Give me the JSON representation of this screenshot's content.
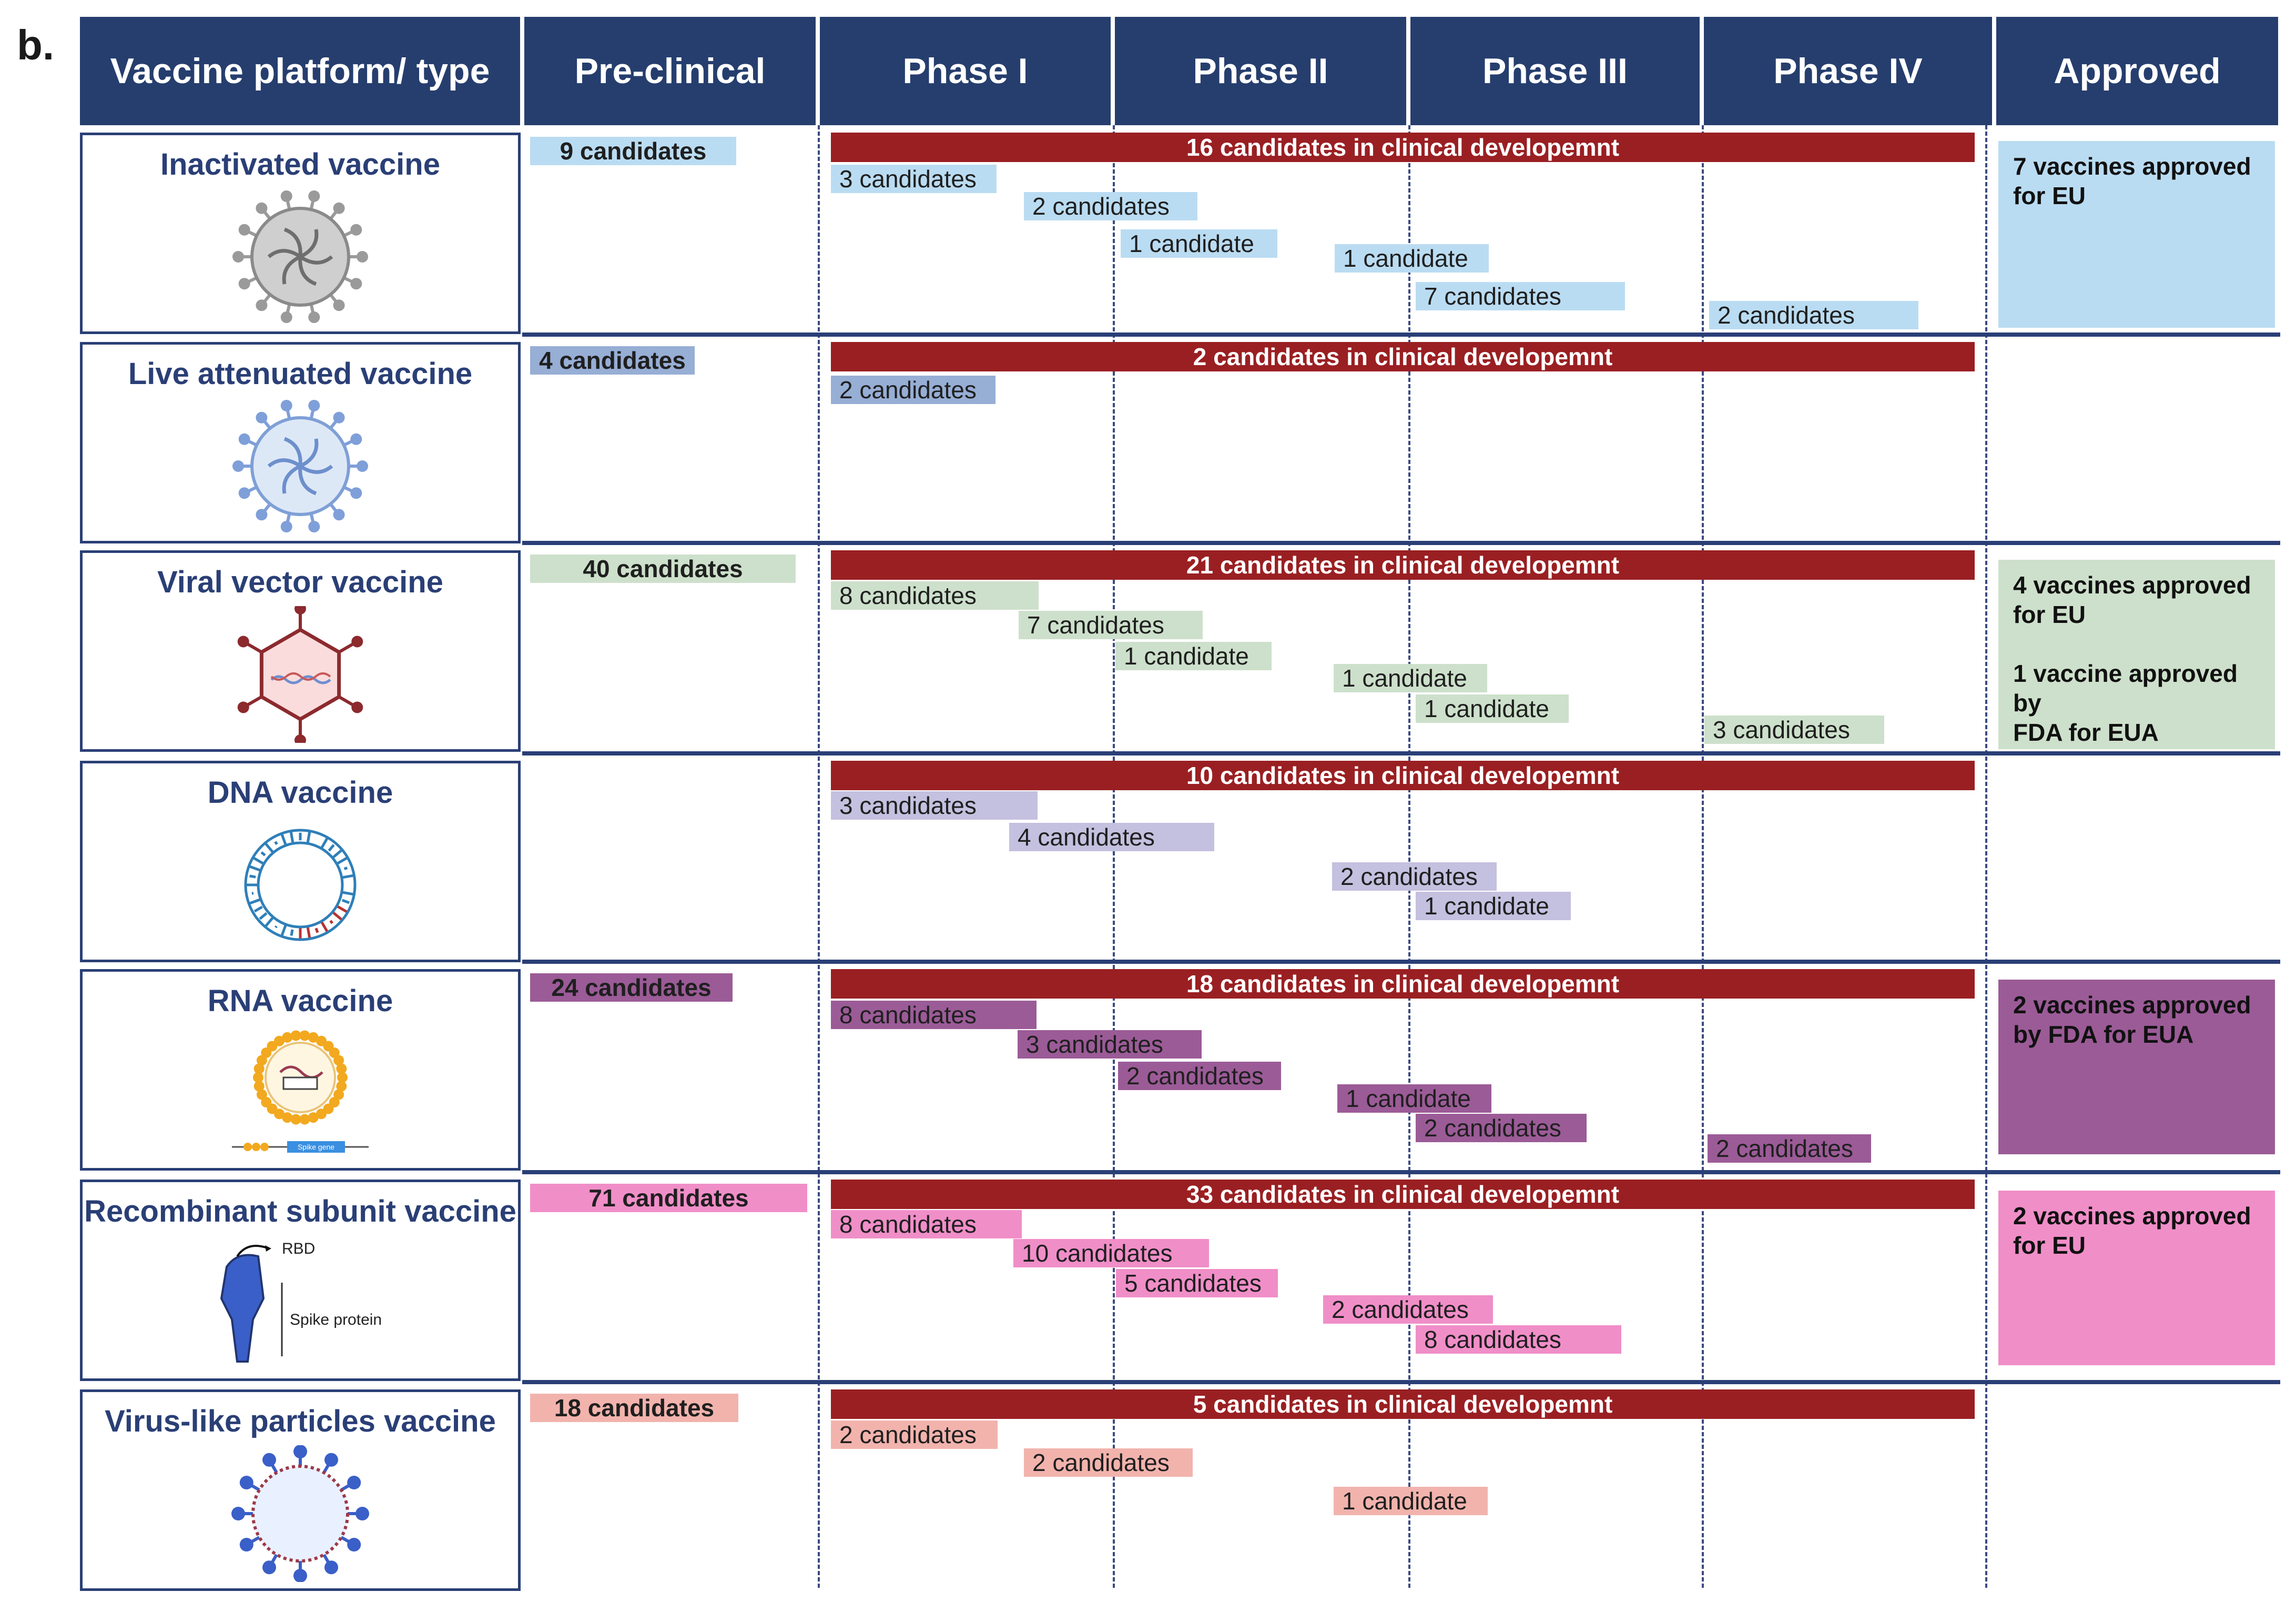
{
  "panel_label": "b.",
  "headers": [
    "Vaccine platform/ type",
    "Pre-clinical",
    "Phase I",
    "Phase II",
    "Phase III",
    "Phase IV",
    "Approved"
  ],
  "colors": {
    "header_bg": "#263e6e",
    "border": "#2a3f76",
    "clinical_bar": "#9a1f22"
  },
  "rows": [
    {
      "name": "Inactivated vaccine",
      "icon": "inactivated-virus-icon",
      "color": "#badcf2",
      "preclinical": "9 candidates",
      "clinical": "16 candidates in clinical developemnt",
      "candidates": [
        "3 candidates",
        "2 candidates",
        "1 candidate",
        "1 candidate",
        "7 candidates",
        "2 candidates"
      ],
      "approved": "7 vaccines approved\nfor EU"
    },
    {
      "name": "Live attenuated vaccine",
      "icon": "live-attenuated-virus-icon",
      "color": "#97aed5",
      "preclinical": "4 candidates",
      "clinical": "2 candidates in clinical developemnt",
      "candidates": [
        "2 candidates"
      ],
      "approved": ""
    },
    {
      "name": "Viral vector vaccine",
      "icon": "viral-vector-icon",
      "color": "#cde0cb",
      "preclinical": "40 candidates",
      "clinical": "21 candidates in clinical developemnt",
      "candidates": [
        "8 candidates",
        "7 candidates",
        "1 candidate",
        "1 candidate",
        "1 candidate",
        "3 candidates"
      ],
      "approved": "4 vaccines approved\nfor EU\n\n1 vaccine approved by\nFDA for EUA"
    },
    {
      "name": "DNA vaccine",
      "icon": "dna-plasmid-icon",
      "color": "#c4c0df",
      "preclinical": "",
      "clinical": "10 candidates in clinical developemnt",
      "candidates": [
        "3 candidates",
        "4 candidates",
        "2 candidates",
        "1 candidate"
      ],
      "approved": ""
    },
    {
      "name": "RNA vaccine",
      "icon": "rna-lipid-nanoparticle-icon",
      "color": "#9b5b97",
      "preclinical": "24 candidates",
      "clinical": "18 candidates in clinical developemnt",
      "candidates": [
        "8 candidates",
        "3 candidates",
        "2 candidates",
        "1 candidate",
        "2 candidates",
        "2 candidates"
      ],
      "approved": "2 vaccines approved\nby FDA for EUA",
      "icon_labels": {
        "spike_gene": "Spike gene"
      }
    },
    {
      "name": "Recombinant subunit vaccine",
      "icon": "spike-protein-icon",
      "color": "#f08ec8",
      "preclinical": "71 candidates",
      "clinical": "33 candidates in clinical developemnt",
      "candidates": [
        "8 candidates",
        "10 candidates",
        "5 candidates",
        "2 candidates",
        "8 candidates"
      ],
      "approved": "2 vaccines approved\nfor EU",
      "icon_labels": {
        "rbd": "RBD",
        "spike": "Spike protein"
      }
    },
    {
      "name": "Virus-like particles vaccine",
      "icon": "virus-like-particle-icon",
      "color": "#f2b3ad",
      "preclinical": "18 candidates",
      "clinical": "5 candidates in clinical developemnt",
      "candidates": [
        "2 candidates",
        "2 candidates",
        "1 candidate"
      ],
      "approved": ""
    }
  ]
}
